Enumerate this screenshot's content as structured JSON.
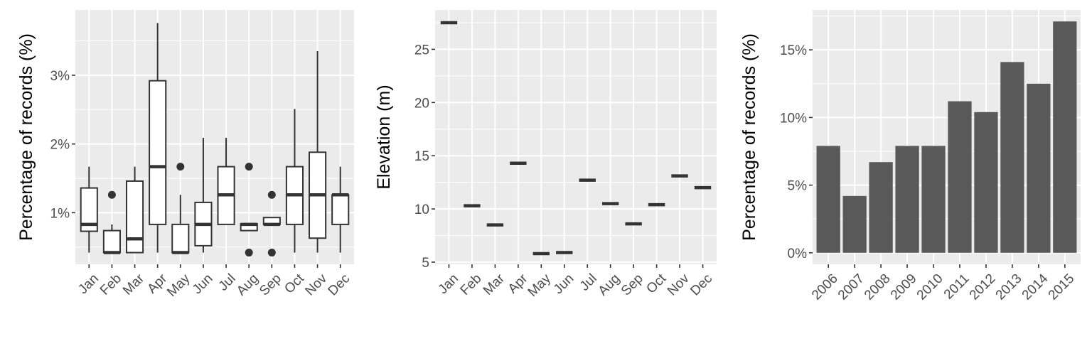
{
  "chart_data": [
    {
      "type": "boxplot",
      "ylabel": "Percentage of records (%)",
      "xlabel": "",
      "categories": [
        "Jan",
        "Feb",
        "Mar",
        "Apr",
        "May",
        "Jun",
        "Jul",
        "Aug",
        "Sep",
        "Oct",
        "Nov",
        "Dec"
      ],
      "ylim": [
        0.25,
        3.95
      ],
      "yticks": [
        1,
        2,
        3
      ],
      "ytick_labels": [
        "1%",
        "2%",
        "3%"
      ],
      "boxes": [
        {
          "min": 0.42,
          "q1": 0.73,
          "median": 0.83,
          "q3": 1.36,
          "max": 1.67,
          "outliers": []
        },
        {
          "min": 0.42,
          "q1": 0.42,
          "median": 0.42,
          "q3": 0.74,
          "max": 0.83,
          "outliers": [
            1.26
          ]
        },
        {
          "min": 0.42,
          "q1": 0.42,
          "median": 0.62,
          "q3": 1.46,
          "max": 1.67,
          "outliers": []
        },
        {
          "min": 0.42,
          "q1": 0.83,
          "median": 1.67,
          "q3": 2.92,
          "max": 3.76,
          "outliers": []
        },
        {
          "min": 0.42,
          "q1": 0.42,
          "median": 0.42,
          "q3": 0.83,
          "max": 1.26,
          "outliers": [
            1.67
          ]
        },
        {
          "min": 0.42,
          "q1": 0.52,
          "median": 0.83,
          "q3": 1.15,
          "max": 2.09,
          "outliers": []
        },
        {
          "min": 0.83,
          "q1": 0.83,
          "median": 1.26,
          "q3": 1.67,
          "max": 2.09,
          "outliers": []
        },
        {
          "min": 0.74,
          "q1": 0.74,
          "median": 0.83,
          "q3": 0.84,
          "max": 0.84,
          "outliers": [
            1.67,
            0.42
          ]
        },
        {
          "min": 0.83,
          "q1": 0.83,
          "median": 0.83,
          "q3": 0.93,
          "max": 0.93,
          "outliers": [
            1.26,
            0.42
          ]
        },
        {
          "min": 0.42,
          "q1": 0.83,
          "median": 1.26,
          "q3": 1.67,
          "max": 2.51,
          "outliers": []
        },
        {
          "min": 0.42,
          "q1": 0.63,
          "median": 1.26,
          "q3": 1.88,
          "max": 3.35,
          "outliers": []
        },
        {
          "min": 0.42,
          "q1": 0.83,
          "median": 1.26,
          "q3": 1.26,
          "max": 1.67,
          "outliers": []
        }
      ]
    },
    {
      "type": "point-range",
      "ylabel": "Elevation (m)",
      "xlabel": "",
      "categories": [
        "Jan",
        "Feb",
        "Mar",
        "Apr",
        "May",
        "Jun",
        "Jul",
        "Aug",
        "Sep",
        "Oct",
        "Nov",
        "Dec"
      ],
      "values": [
        27.5,
        10.3,
        8.5,
        14.3,
        5.8,
        5.9,
        12.7,
        10.5,
        8.6,
        10.4,
        13.1,
        12.0
      ],
      "ylim": [
        4.8,
        28.7
      ],
      "yticks": [
        5,
        10,
        15,
        20,
        25
      ],
      "ytick_labels": [
        "5",
        "10",
        "15",
        "20",
        "25"
      ]
    },
    {
      "type": "bar",
      "ylabel": "Percentage of records (%)",
      "xlabel": "",
      "categories": [
        "2006",
        "2007",
        "2008",
        "2009",
        "2010",
        "2011",
        "2012",
        "2013",
        "2014",
        "2015"
      ],
      "values": [
        7.9,
        4.2,
        6.7,
        7.9,
        7.9,
        11.2,
        10.4,
        14.1,
        12.5,
        17.1
      ],
      "ylim": [
        -0.85,
        17.95
      ],
      "yticks": [
        0,
        5,
        10,
        15
      ],
      "ytick_labels": [
        "0%",
        "5%",
        "10%",
        "15%"
      ]
    }
  ]
}
